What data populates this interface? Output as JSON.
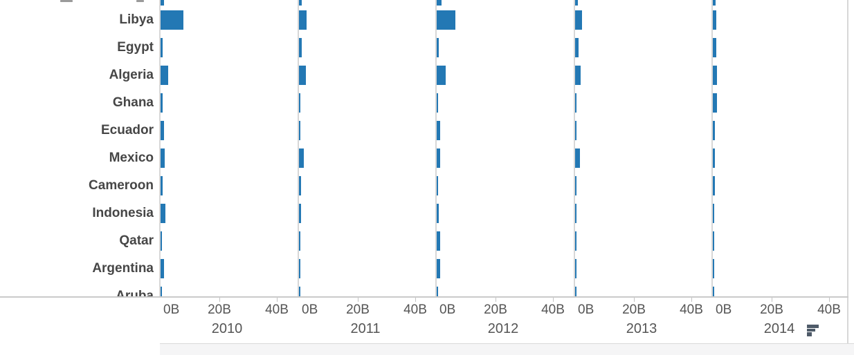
{
  "chart_data": {
    "type": "bar",
    "orientation": "horizontal",
    "title": "",
    "description": "Small-multiple horizontal bar chart; one panel per year, countries as rows, values in billions (B)",
    "categories": [
      "Libya",
      "Egypt",
      "Algeria",
      "Ghana",
      "Ecuador",
      "Mexico",
      "Cameroon",
      "Indonesia",
      "Qatar",
      "Argentina",
      "Aruba"
    ],
    "series": [
      {
        "name": "2010",
        "values": [
          7.8,
          0.7,
          2.7,
          0.6,
          1.3,
          1.4,
          0.6,
          1.7,
          0.5,
          1.2,
          0.4
        ]
      },
      {
        "name": "2011",
        "values": [
          2.5,
          1.0,
          2.4,
          0.5,
          0.5,
          1.7,
          0.6,
          0.7,
          0.4,
          0.5,
          0.4
        ]
      },
      {
        "name": "2012",
        "values": [
          6.4,
          0.6,
          3.0,
          0.5,
          1.1,
          1.2,
          0.5,
          0.6,
          1.1,
          1.1,
          0.4
        ]
      },
      {
        "name": "2013",
        "values": [
          2.4,
          1.2,
          1.9,
          0.5,
          0.5,
          1.7,
          0.5,
          0.5,
          0.4,
          0.3,
          0.3
        ]
      },
      {
        "name": "2014",
        "values": [
          1.3,
          1.3,
          1.4,
          1.4,
          0.6,
          0.6,
          0.6,
          0.5,
          0.4,
          0.4,
          0.4
        ]
      }
    ],
    "clipped_top_row_values": [
      1.2,
      1.0,
      1.7,
      1.0,
      1.0
    ],
    "x_tick_labels": [
      "0B",
      "20B",
      "40B"
    ],
    "x_tick_values": [
      0,
      20,
      40
    ],
    "xlim": [
      0,
      47
    ],
    "value_unit": "B",
    "legend": "none",
    "grid": "panel separators only, no internal gridlines",
    "colors": {
      "bar": "#2378b4",
      "row_label_text": "#464646",
      "axis_text": "#555555",
      "panel_border": "#d7d7d7",
      "axis_line": "#cacaca",
      "footer_background": "#f5f5f6",
      "logo": "#4e5a68"
    }
  },
  "footer": {
    "logo_icon": "tableau-logo"
  }
}
